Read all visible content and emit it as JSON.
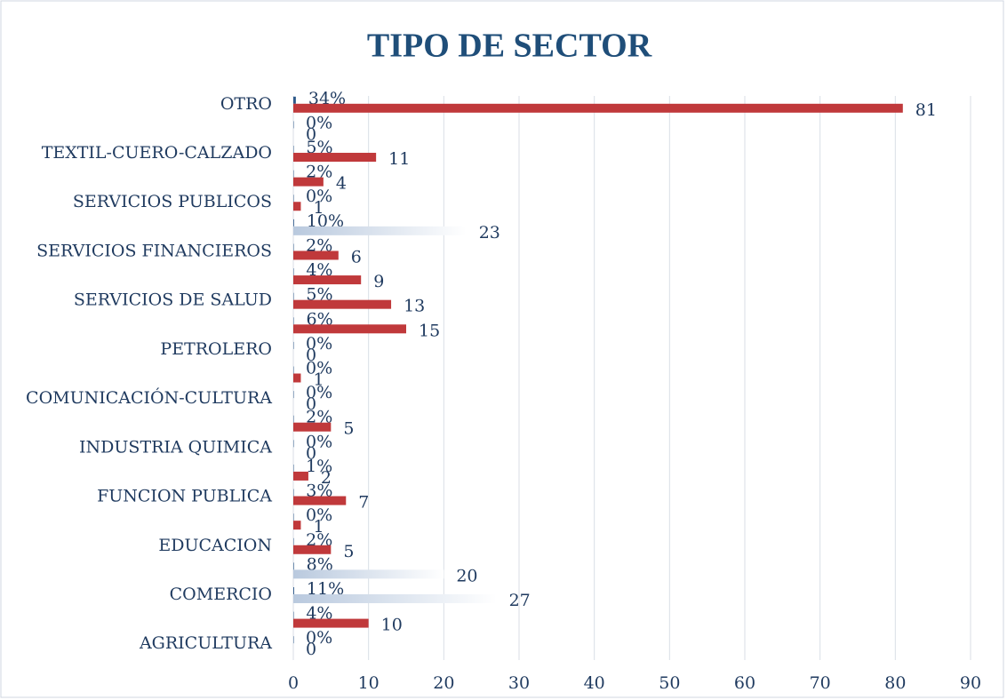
{
  "chart_data": {
    "type": "bar",
    "orientation": "horizontal",
    "title": "TIPO DE SECTOR",
    "categories": [
      "AGRICULTURA",
      null,
      "COMERCIO",
      null,
      "EDUCACION",
      null,
      "FUNCION PUBLICA",
      null,
      "INDUSTRIA QUIMICA",
      null,
      "COMUNICACIÓN-CULTURA",
      null,
      "PETROLERO",
      null,
      "SERVICIOS DE SALUD",
      null,
      "SERVICIOS FINANCIEROS",
      null,
      "SERVICIOS PUBLICOS",
      null,
      "TEXTIL-CUERO-CALZADO",
      null,
      "OTRO"
    ],
    "series": [
      {
        "color": "#2e5a8a",
        "values": [
          0,
          0.04,
          0.11,
          0.08,
          0.02,
          0,
          0.03,
          0.01,
          0,
          0.02,
          0,
          0,
          0,
          0.06,
          0.05,
          0.04,
          0.02,
          0.1,
          0,
          0.02,
          0.05,
          0,
          0.34
        ],
        "value_labels": [
          "0%",
          "4%",
          "11%",
          "8%",
          "2%",
          "0%",
          "3%",
          "1%",
          "0%",
          "2%",
          "0%",
          "0%",
          "0%",
          "6%",
          "5%",
          "4%",
          "2%",
          "10%",
          "0%",
          "2%",
          "5%",
          "0%",
          "34%"
        ]
      },
      {
        "color": "#c0393b",
        "colors": [
          "#c0393b",
          "#c0393b",
          "light",
          "light",
          "#c0393b",
          "#c0393b",
          "#c0393b",
          "#c0393b",
          "#c0393b",
          "#c0393b",
          "#c0393b",
          "#c0393b",
          "#c0393b",
          "#c0393b",
          "#c0393b",
          "#c0393b",
          "#c0393b",
          "light",
          "#c0393b",
          "#c0393b",
          "#c0393b",
          "#c0393b",
          "#c0393b"
        ],
        "values": [
          0,
          10,
          27,
          20,
          5,
          1,
          7,
          2,
          0,
          5,
          0,
          1,
          0,
          15,
          13,
          9,
          6,
          23,
          1,
          4,
          11,
          0,
          81
        ]
      }
    ],
    "xlim": [
      0,
      90
    ],
    "xticks": [
      0,
      10,
      20,
      30,
      40,
      50,
      60,
      70,
      80,
      90
    ],
    "grid": true
  }
}
